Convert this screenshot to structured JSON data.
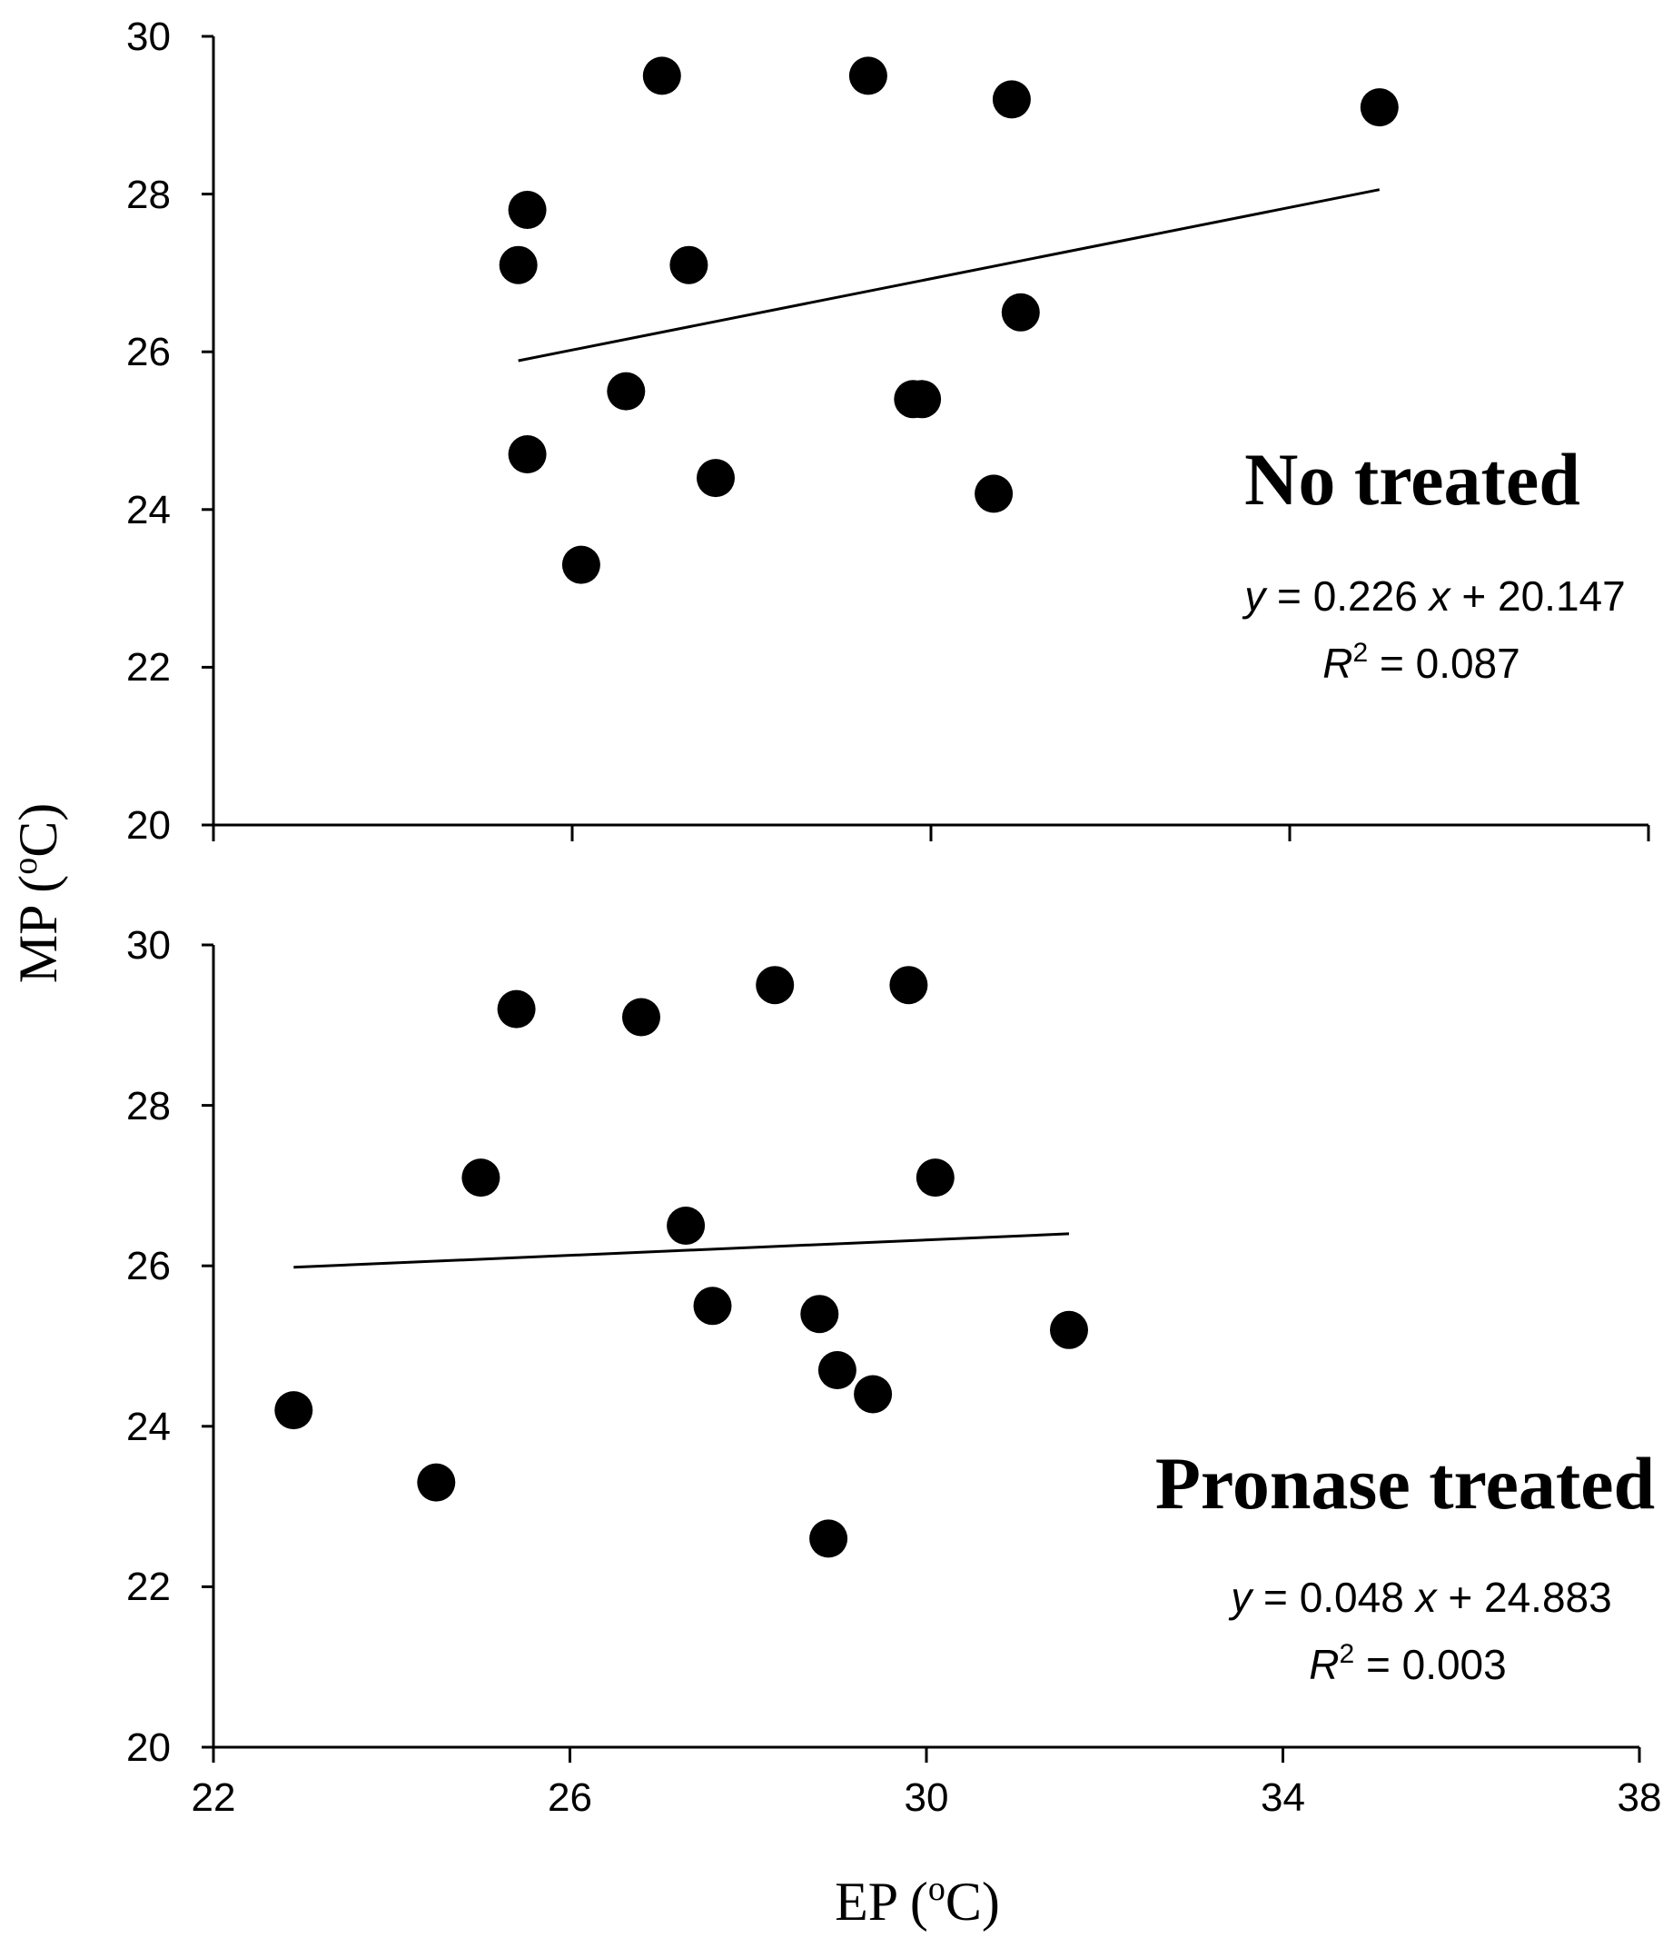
{
  "chart_data": [
    {
      "type": "scatter",
      "title": "No treated",
      "equation": {
        "y_var": "y",
        "eq_text": " = 0.226 ",
        "x_var": "x",
        "intercept_text": " + 20.147",
        "r_var": "R",
        "r_sup": "2",
        "r2_text": " = 0.087"
      },
      "x": [
        25.4,
        25.5,
        25.5,
        26.1,
        26.6,
        27.0,
        27.3,
        27.6,
        29.3,
        29.8,
        29.9,
        30.7,
        30.9,
        31.0,
        35.0
      ],
      "y": [
        27.1,
        27.8,
        24.7,
        23.3,
        25.5,
        29.5,
        27.1,
        24.4,
        29.5,
        25.4,
        25.4,
        24.2,
        29.2,
        26.5,
        29.1
      ],
      "trendline": {
        "slope": 0.226,
        "intercept": 20.147,
        "x_range": [
          25.4,
          35.0
        ]
      },
      "xlim": [
        22,
        38
      ],
      "ylim": [
        20,
        30
      ],
      "yticks": [
        "20",
        "22",
        "24",
        "26",
        "28",
        "30"
      ],
      "xticks": [
        "22",
        "26",
        "30",
        "34",
        "38"
      ]
    },
    {
      "type": "scatter",
      "title": "Pronase treated",
      "equation": {
        "y_var": "y",
        "eq_text": " = 0.048 ",
        "x_var": "x",
        "intercept_text": " + 24.883",
        "r_var": "R",
        "r_sup": "2",
        "r2_text": " = 0.003"
      },
      "x": [
        22.9,
        24.5,
        25.0,
        25.4,
        26.8,
        27.3,
        27.6,
        28.3,
        28.8,
        28.9,
        29.0,
        29.4,
        29.8,
        30.1,
        31.6
      ],
      "y": [
        24.2,
        23.3,
        27.1,
        29.2,
        29.1,
        26.5,
        25.5,
        29.5,
        25.4,
        22.6,
        24.7,
        24.4,
        29.5,
        27.1,
        25.2
      ],
      "trendline": {
        "slope": 0.048,
        "intercept": 24.883,
        "x_range": [
          22.9,
          31.6
        ]
      },
      "xlim": [
        22,
        38
      ],
      "ylim": [
        20,
        30
      ],
      "yticks": [
        "20",
        "22",
        "24",
        "26",
        "28",
        "30"
      ],
      "xticks": [
        "22",
        "26",
        "30",
        "34",
        "38"
      ]
    }
  ],
  "axes": {
    "xlabel": "EP (",
    "ylabel": "MP (",
    "unit_sup": "o",
    "unit_suffix": "C)"
  }
}
